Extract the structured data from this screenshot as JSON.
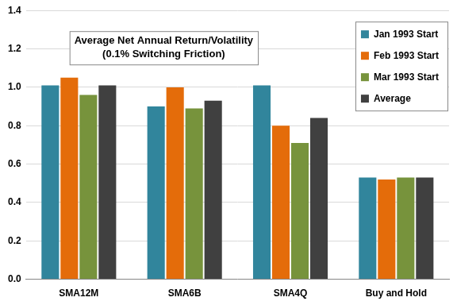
{
  "chart_data": {
    "type": "bar",
    "title": "Average Net Annual Return/Volatility",
    "subtitle": "(0.1% Switching Friction)",
    "categories": [
      "SMA12M",
      "SMA6B",
      "SMA4Q",
      "Buy and Hold"
    ],
    "series": [
      {
        "name": "Jan 1993 Start",
        "color": "#31859C",
        "values": [
          1.01,
          0.9,
          1.01,
          0.53
        ]
      },
      {
        "name": "Feb 1993 Start",
        "color": "#E46C0A",
        "values": [
          1.05,
          1.0,
          0.8,
          0.52
        ]
      },
      {
        "name": "Mar 1993 Start",
        "color": "#77933C",
        "values": [
          0.96,
          0.89,
          0.71,
          0.53
        ]
      },
      {
        "name": "Average",
        "color": "#404040",
        "values": [
          1.01,
          0.93,
          0.84,
          0.53
        ]
      }
    ],
    "ylim": [
      0,
      1.4
    ],
    "yticks": [
      {
        "value": 0,
        "label": "0.0"
      },
      {
        "value": 0.2,
        "label": "0.2"
      },
      {
        "value": 0.4,
        "label": "0.4"
      },
      {
        "value": 0.6,
        "label": "0.6"
      },
      {
        "value": 0.8,
        "label": "0.8"
      },
      {
        "value": 1.0,
        "label": "1.0"
      },
      {
        "value": 1.2,
        "label": "1.2"
      },
      {
        "value": 1.4,
        "label": "1.4"
      }
    ],
    "grid": true,
    "legend": "top-right"
  }
}
